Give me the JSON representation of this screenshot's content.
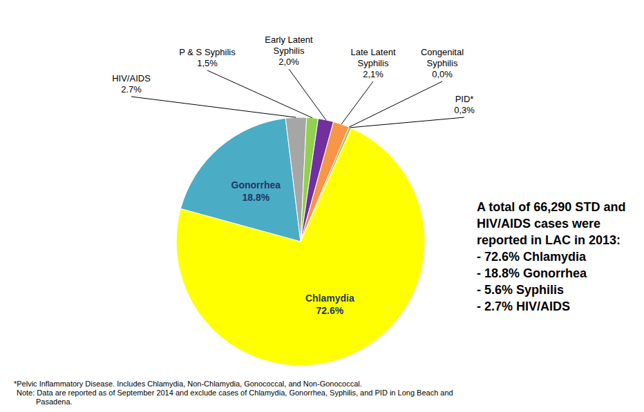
{
  "chart_data": {
    "type": "pie",
    "categories": [
      "Chlamydia",
      "Gonorrhea",
      "HIV/AIDS",
      "P & S Syphilis",
      "Early Latent Syphilis",
      "Late Latent Syphilis",
      "Congenital Syphilis",
      "PID*"
    ],
    "values": [
      72.6,
      18.8,
      2.7,
      1.5,
      2.0,
      2.1,
      0.0,
      0.3
    ],
    "value_labels": [
      "72.6%",
      "18.8%",
      "2.7%",
      "1,5%",
      "2,0%",
      "2,1%",
      "0,0%",
      "0,3%"
    ],
    "colors": [
      "#ffff00",
      "#4bacc6",
      "#a6a6a6",
      "#92d050",
      "#7030a0",
      "#f79646",
      "#c0504d",
      "#9bbb59"
    ],
    "data_labels": true,
    "annotations": {
      "summary_heading": "A total of 66,290 STD and HIV/AIDS cases were reported in LAC in 2013:",
      "summary_items": [
        "- 72.6% Chlamydia",
        "- 18.8% Gonorrhea",
        "- 5.6% Syphilis",
        "- 2.7% HIV/AIDS"
      ],
      "footnotes": [
        "*Pelvic Inflammatory Disease. Includes Chlamydia, Non-Chlamydia, Gonococcal, and Non-Gonococcal.",
        "Note: Data are reported as of September 2014 and exclude cases of Chlamydia, Gonorrhea, Syphilis, and PID in Long Beach and Pasadena."
      ]
    }
  }
}
